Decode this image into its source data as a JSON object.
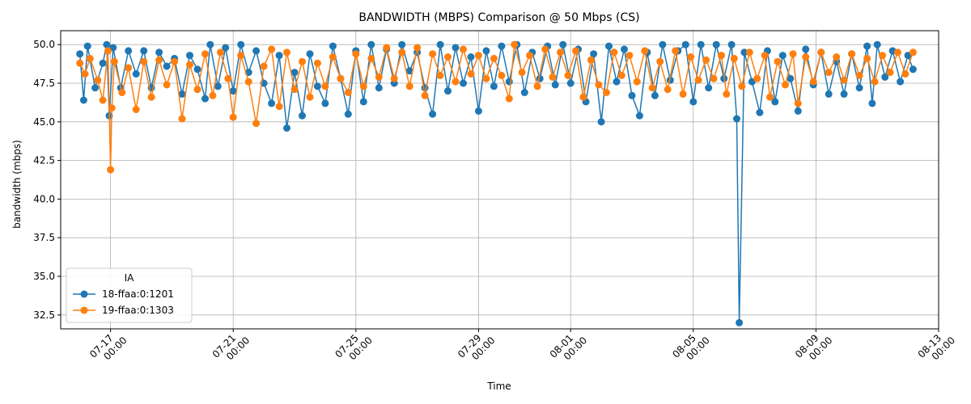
{
  "chart_data": {
    "type": "line",
    "title": "BANDWIDTH (MBPS) Comparison @ 50 Mbps (CS)",
    "xlabel": "Time",
    "ylabel": "bandwidth (mbps)",
    "xlim": [
      "2024-07-15T09:00",
      "2024-08-13T00:00"
    ],
    "ylim": [
      31.6,
      50.9
    ],
    "x_ticks": [
      {
        "date": "2024-07-17T00:00",
        "line1": "07-17",
        "line2": "00:00"
      },
      {
        "date": "2024-07-21T00:00",
        "line1": "07-21",
        "line2": "00:00"
      },
      {
        "date": "2024-07-25T00:00",
        "line1": "07-25",
        "line2": "00:00"
      },
      {
        "date": "2024-07-29T00:00",
        "line1": "07-29",
        "line2": "00:00"
      },
      {
        "date": "2024-08-01T00:00",
        "line1": "08-01",
        "line2": "00:00"
      },
      {
        "date": "2024-08-05T00:00",
        "line1": "08-05",
        "line2": "00:00"
      },
      {
        "date": "2024-08-09T00:00",
        "line1": "08-09",
        "line2": "00:00"
      },
      {
        "date": "2024-08-13T00:00",
        "line1": "08-13",
        "line2": "00:00"
      }
    ],
    "y_ticks": [
      "32.5",
      "35.0",
      "37.5",
      "40.0",
      "42.5",
      "45.0",
      "47.5",
      "50.0"
    ],
    "grid": true,
    "legend": {
      "title": "IA",
      "placement": "lower-left"
    },
    "series": [
      {
        "name": "18-ffaa:0:1201",
        "color": "#1f77b4",
        "points": [
          [
            "2024-07-16T00:00",
            49.4
          ],
          [
            "2024-07-16T03:00",
            46.4
          ],
          [
            "2024-07-16T06:00",
            49.9
          ],
          [
            "2024-07-16T12:00",
            47.2
          ],
          [
            "2024-07-16T18:00",
            48.8
          ],
          [
            "2024-07-16T21:00",
            50.0
          ],
          [
            "2024-07-16T23:00",
            45.4
          ],
          [
            "2024-07-17T02:00",
            49.8
          ],
          [
            "2024-07-17T08:00",
            47.2
          ],
          [
            "2024-07-17T14:00",
            49.6
          ],
          [
            "2024-07-17T20:00",
            48.1
          ],
          [
            "2024-07-18T02:00",
            49.6
          ],
          [
            "2024-07-18T08:00",
            47.2
          ],
          [
            "2024-07-18T14:00",
            49.5
          ],
          [
            "2024-07-18T20:00",
            48.6
          ],
          [
            "2024-07-19T02:00",
            49.1
          ],
          [
            "2024-07-19T08:00",
            46.8
          ],
          [
            "2024-07-19T14:00",
            49.3
          ],
          [
            "2024-07-19T20:00",
            48.4
          ],
          [
            "2024-07-20T02:00",
            46.5
          ],
          [
            "2024-07-20T06:00",
            50.0
          ],
          [
            "2024-07-20T12:00",
            47.3
          ],
          [
            "2024-07-20T18:00",
            49.8
          ],
          [
            "2024-07-21T00:00",
            47.0
          ],
          [
            "2024-07-21T06:00",
            50.0
          ],
          [
            "2024-07-21T12:00",
            48.2
          ],
          [
            "2024-07-21T18:00",
            49.6
          ],
          [
            "2024-07-22T00:00",
            47.5
          ],
          [
            "2024-07-22T06:00",
            46.2
          ],
          [
            "2024-07-22T12:00",
            49.3
          ],
          [
            "2024-07-22T18:00",
            44.6
          ],
          [
            "2024-07-23T00:00",
            48.2
          ],
          [
            "2024-07-23T06:00",
            45.4
          ],
          [
            "2024-07-23T12:00",
            49.4
          ],
          [
            "2024-07-23T18:00",
            47.3
          ],
          [
            "2024-07-24T00:00",
            46.2
          ],
          [
            "2024-07-24T06:00",
            49.9
          ],
          [
            "2024-07-24T12:00",
            47.8
          ],
          [
            "2024-07-24T18:00",
            45.5
          ],
          [
            "2024-07-25T00:00",
            49.6
          ],
          [
            "2024-07-25T06:00",
            46.3
          ],
          [
            "2024-07-25T12:00",
            50.0
          ],
          [
            "2024-07-25T18:00",
            47.2
          ],
          [
            "2024-07-26T00:00",
            49.7
          ],
          [
            "2024-07-26T06:00",
            47.5
          ],
          [
            "2024-07-26T12:00",
            50.0
          ],
          [
            "2024-07-26T18:00",
            48.3
          ],
          [
            "2024-07-27T00:00",
            49.5
          ],
          [
            "2024-07-27T06:00",
            47.2
          ],
          [
            "2024-07-27T12:00",
            45.5
          ],
          [
            "2024-07-27T18:00",
            50.0
          ],
          [
            "2024-07-28T00:00",
            47.0
          ],
          [
            "2024-07-28T06:00",
            49.8
          ],
          [
            "2024-07-28T12:00",
            47.5
          ],
          [
            "2024-07-28T18:00",
            49.2
          ],
          [
            "2024-07-29T00:00",
            45.7
          ],
          [
            "2024-07-29T06:00",
            49.6
          ],
          [
            "2024-07-29T12:00",
            47.3
          ],
          [
            "2024-07-29T18:00",
            49.9
          ],
          [
            "2024-07-30T00:00",
            47.6
          ],
          [
            "2024-07-30T06:00",
            50.0
          ],
          [
            "2024-07-30T12:00",
            46.9
          ],
          [
            "2024-07-30T18:00",
            49.5
          ],
          [
            "2024-07-31T00:00",
            47.8
          ],
          [
            "2024-07-31T06:00",
            49.9
          ],
          [
            "2024-07-31T12:00",
            47.4
          ],
          [
            "2024-07-31T18:00",
            50.0
          ],
          [
            "2024-08-01T00:00",
            47.5
          ],
          [
            "2024-08-01T06:00",
            49.7
          ],
          [
            "2024-08-01T12:00",
            46.3
          ],
          [
            "2024-08-01T18:00",
            49.4
          ],
          [
            "2024-08-02T00:00",
            45.0
          ],
          [
            "2024-08-02T06:00",
            49.9
          ],
          [
            "2024-08-02T12:00",
            47.6
          ],
          [
            "2024-08-02T18:00",
            49.7
          ],
          [
            "2024-08-03T00:00",
            46.7
          ],
          [
            "2024-08-03T06:00",
            45.4
          ],
          [
            "2024-08-03T12:00",
            49.5
          ],
          [
            "2024-08-03T18:00",
            46.7
          ],
          [
            "2024-08-04T00:00",
            50.0
          ],
          [
            "2024-08-04T06:00",
            47.7
          ],
          [
            "2024-08-04T12:00",
            49.6
          ],
          [
            "2024-08-04T18:00",
            50.0
          ],
          [
            "2024-08-05T00:00",
            46.3
          ],
          [
            "2024-08-05T06:00",
            50.0
          ],
          [
            "2024-08-05T12:00",
            47.2
          ],
          [
            "2024-08-05T18:00",
            50.0
          ],
          [
            "2024-08-06T00:00",
            47.8
          ],
          [
            "2024-08-06T06:00",
            50.0
          ],
          [
            "2024-08-06T10:00",
            45.2
          ],
          [
            "2024-08-06T12:00",
            32.0
          ],
          [
            "2024-08-06T16:00",
            49.5
          ],
          [
            "2024-08-06T22:00",
            47.6
          ],
          [
            "2024-08-07T04:00",
            45.6
          ],
          [
            "2024-08-07T10:00",
            49.6
          ],
          [
            "2024-08-07T16:00",
            46.3
          ],
          [
            "2024-08-07T22:00",
            49.3
          ],
          [
            "2024-08-08T04:00",
            47.8
          ],
          [
            "2024-08-08T10:00",
            45.7
          ],
          [
            "2024-08-08T16:00",
            49.7
          ],
          [
            "2024-08-08T22:00",
            47.4
          ],
          [
            "2024-08-09T04:00",
            49.5
          ],
          [
            "2024-08-09T10:00",
            46.8
          ],
          [
            "2024-08-09T16:00",
            48.9
          ],
          [
            "2024-08-09T22:00",
            46.8
          ],
          [
            "2024-08-10T04:00",
            49.4
          ],
          [
            "2024-08-10T10:00",
            47.2
          ],
          [
            "2024-08-10T16:00",
            49.9
          ],
          [
            "2024-08-10T20:00",
            46.2
          ],
          [
            "2024-08-11T00:00",
            50.0
          ],
          [
            "2024-08-11T06:00",
            47.9
          ],
          [
            "2024-08-11T12:00",
            49.6
          ],
          [
            "2024-08-11T18:00",
            47.6
          ],
          [
            "2024-08-12T00:00",
            49.3
          ],
          [
            "2024-08-12T04:00",
            48.4
          ]
        ]
      },
      {
        "name": "19-ffaa:0:1303",
        "color": "#ff7f0e",
        "points": [
          [
            "2024-07-16T00:00",
            48.8
          ],
          [
            "2024-07-16T04:00",
            48.1
          ],
          [
            "2024-07-16T08:00",
            49.1
          ],
          [
            "2024-07-16T14:00",
            47.7
          ],
          [
            "2024-07-16T18:00",
            46.4
          ],
          [
            "2024-07-16T22:00",
            49.6
          ],
          [
            "2024-07-17T00:00",
            41.9
          ],
          [
            "2024-07-17T01:00",
            45.9
          ],
          [
            "2024-07-17T03:00",
            48.9
          ],
          [
            "2024-07-17T09:00",
            46.9
          ],
          [
            "2024-07-17T14:00",
            48.5
          ],
          [
            "2024-07-17T20:00",
            45.8
          ],
          [
            "2024-07-18T02:00",
            48.9
          ],
          [
            "2024-07-18T08:00",
            46.6
          ],
          [
            "2024-07-18T14:00",
            49.0
          ],
          [
            "2024-07-18T20:00",
            47.4
          ],
          [
            "2024-07-19T02:00",
            48.9
          ],
          [
            "2024-07-19T08:00",
            45.2
          ],
          [
            "2024-07-19T14:00",
            48.7
          ],
          [
            "2024-07-19T20:00",
            47.1
          ],
          [
            "2024-07-20T02:00",
            49.4
          ],
          [
            "2024-07-20T08:00",
            46.7
          ],
          [
            "2024-07-20T14:00",
            49.5
          ],
          [
            "2024-07-20T20:00",
            47.8
          ],
          [
            "2024-07-21T00:00",
            45.3
          ],
          [
            "2024-07-21T06:00",
            49.3
          ],
          [
            "2024-07-21T12:00",
            47.6
          ],
          [
            "2024-07-21T18:00",
            44.9
          ],
          [
            "2024-07-22T00:00",
            48.6
          ],
          [
            "2024-07-22T06:00",
            49.7
          ],
          [
            "2024-07-22T12:00",
            46.0
          ],
          [
            "2024-07-22T18:00",
            49.5
          ],
          [
            "2024-07-23T00:00",
            47.1
          ],
          [
            "2024-07-23T06:00",
            48.9
          ],
          [
            "2024-07-23T12:00",
            46.6
          ],
          [
            "2024-07-23T18:00",
            48.8
          ],
          [
            "2024-07-24T00:00",
            47.3
          ],
          [
            "2024-07-24T06:00",
            49.2
          ],
          [
            "2024-07-24T12:00",
            47.8
          ],
          [
            "2024-07-24T18:00",
            46.9
          ],
          [
            "2024-07-25T00:00",
            49.4
          ],
          [
            "2024-07-25T06:00",
            47.3
          ],
          [
            "2024-07-25T12:00",
            49.1
          ],
          [
            "2024-07-25T18:00",
            47.9
          ],
          [
            "2024-07-26T00:00",
            49.8
          ],
          [
            "2024-07-26T06:00",
            47.8
          ],
          [
            "2024-07-26T12:00",
            49.5
          ],
          [
            "2024-07-26T18:00",
            47.3
          ],
          [
            "2024-07-27T00:00",
            49.8
          ],
          [
            "2024-07-27T06:00",
            46.7
          ],
          [
            "2024-07-27T12:00",
            49.4
          ],
          [
            "2024-07-27T18:00",
            48.0
          ],
          [
            "2024-07-28T00:00",
            49.2
          ],
          [
            "2024-07-28T06:00",
            47.6
          ],
          [
            "2024-07-28T12:00",
            49.7
          ],
          [
            "2024-07-28T18:00",
            48.1
          ],
          [
            "2024-07-29T00:00",
            49.3
          ],
          [
            "2024-07-29T06:00",
            47.8
          ],
          [
            "2024-07-29T12:00",
            49.1
          ],
          [
            "2024-07-29T18:00",
            48.0
          ],
          [
            "2024-07-30T00:00",
            46.5
          ],
          [
            "2024-07-30T04:00",
            50.0
          ],
          [
            "2024-07-30T10:00",
            48.2
          ],
          [
            "2024-07-30T16:00",
            49.3
          ],
          [
            "2024-07-30T22:00",
            47.3
          ],
          [
            "2024-07-31T04:00",
            49.7
          ],
          [
            "2024-07-31T10:00",
            47.9
          ],
          [
            "2024-07-31T16:00",
            49.5
          ],
          [
            "2024-07-31T22:00",
            48.0
          ],
          [
            "2024-08-01T04:00",
            49.6
          ],
          [
            "2024-08-01T10:00",
            46.6
          ],
          [
            "2024-08-01T16:00",
            49.0
          ],
          [
            "2024-08-01T22:00",
            47.4
          ],
          [
            "2024-08-02T04:00",
            46.9
          ],
          [
            "2024-08-02T10:00",
            49.5
          ],
          [
            "2024-08-02T16:00",
            48.0
          ],
          [
            "2024-08-02T22:00",
            49.3
          ],
          [
            "2024-08-03T04:00",
            47.6
          ],
          [
            "2024-08-03T10:00",
            49.6
          ],
          [
            "2024-08-03T16:00",
            47.2
          ],
          [
            "2024-08-03T22:00",
            48.9
          ],
          [
            "2024-08-04T04:00",
            47.1
          ],
          [
            "2024-08-04T10:00",
            49.6
          ],
          [
            "2024-08-04T16:00",
            46.8
          ],
          [
            "2024-08-04T22:00",
            49.2
          ],
          [
            "2024-08-05T04:00",
            47.7
          ],
          [
            "2024-08-05T10:00",
            49.0
          ],
          [
            "2024-08-05T16:00",
            47.8
          ],
          [
            "2024-08-05T22:00",
            49.3
          ],
          [
            "2024-08-06T02:00",
            46.8
          ],
          [
            "2024-08-06T08:00",
            49.1
          ],
          [
            "2024-08-06T14:00",
            47.3
          ],
          [
            "2024-08-06T20:00",
            49.5
          ],
          [
            "2024-08-07T02:00",
            47.8
          ],
          [
            "2024-08-07T08:00",
            49.3
          ],
          [
            "2024-08-07T12:00",
            46.6
          ],
          [
            "2024-08-07T18:00",
            48.9
          ],
          [
            "2024-08-08T00:00",
            47.4
          ],
          [
            "2024-08-08T06:00",
            49.4
          ],
          [
            "2024-08-08T10:00",
            46.2
          ],
          [
            "2024-08-08T16:00",
            49.2
          ],
          [
            "2024-08-08T22:00",
            47.6
          ],
          [
            "2024-08-09T04:00",
            49.5
          ],
          [
            "2024-08-09T10:00",
            48.2
          ],
          [
            "2024-08-09T16:00",
            49.2
          ],
          [
            "2024-08-09T22:00",
            47.7
          ],
          [
            "2024-08-10T04:00",
            49.4
          ],
          [
            "2024-08-10T10:00",
            48.0
          ],
          [
            "2024-08-10T16:00",
            49.1
          ],
          [
            "2024-08-10T22:00",
            47.6
          ],
          [
            "2024-08-11T04:00",
            49.3
          ],
          [
            "2024-08-11T10:00",
            48.2
          ],
          [
            "2024-08-11T16:00",
            49.5
          ],
          [
            "2024-08-11T22:00",
            48.1
          ],
          [
            "2024-08-12T04:00",
            49.5
          ]
        ]
      }
    ]
  }
}
